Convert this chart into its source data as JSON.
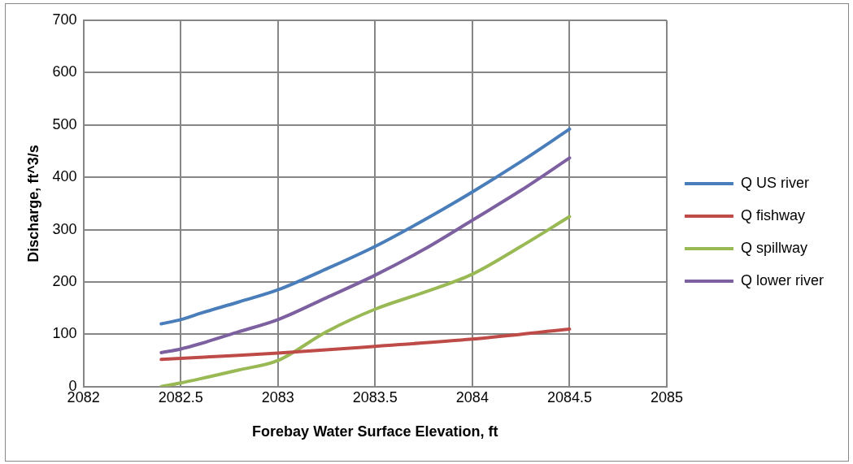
{
  "chart_data": {
    "type": "line",
    "xlabel": "Forebay Water Surface Elevation, ft",
    "ylabel": "Discharge, ft^3/s",
    "xlim": [
      2082,
      2085
    ],
    "xticks": [
      2082,
      2082.5,
      2083,
      2083.5,
      2084,
      2084.5,
      2085
    ],
    "ylim": [
      0,
      700
    ],
    "yticks": [
      0,
      100,
      200,
      300,
      400,
      500,
      600,
      700
    ],
    "grid": true,
    "legend": "right",
    "marker": "none",
    "line_style": "solid",
    "series": [
      {
        "name": "Q US river",
        "color": "#4a7ebb",
        "x": [
          2082.4,
          2082.5,
          2082.6,
          2082.8,
          2083,
          2083.25,
          2083.5,
          2083.75,
          2084,
          2084.25,
          2084.5
        ],
        "values": [
          120,
          128,
          140,
          162,
          185,
          225,
          268,
          318,
          372,
          430,
          492
        ]
      },
      {
        "name": "Q fishway",
        "color": "#be4b48",
        "x": [
          2082.4,
          2082.6,
          2082.8,
          2083,
          2083.5,
          2084,
          2084.5
        ],
        "values": [
          52,
          56,
          60,
          64,
          77,
          91,
          110
        ]
      },
      {
        "name": "Q spillway",
        "color": "#98b954",
        "x": [
          2082.4,
          2082.5,
          2082.6,
          2082.8,
          2083,
          2083.25,
          2083.5,
          2083.75,
          2084,
          2084.25,
          2084.5
        ],
        "values": [
          0,
          7,
          15,
          32,
          50,
          105,
          148,
          180,
          215,
          268,
          325
        ]
      },
      {
        "name": "Q lower river",
        "color": "#7d60a0",
        "x": [
          2082.4,
          2082.5,
          2082.6,
          2082.8,
          2083,
          2083.25,
          2083.5,
          2083.75,
          2084,
          2084.25,
          2084.5
        ],
        "values": [
          65,
          72,
          82,
          105,
          128,
          170,
          213,
          262,
          318,
          375,
          437
        ]
      }
    ]
  }
}
